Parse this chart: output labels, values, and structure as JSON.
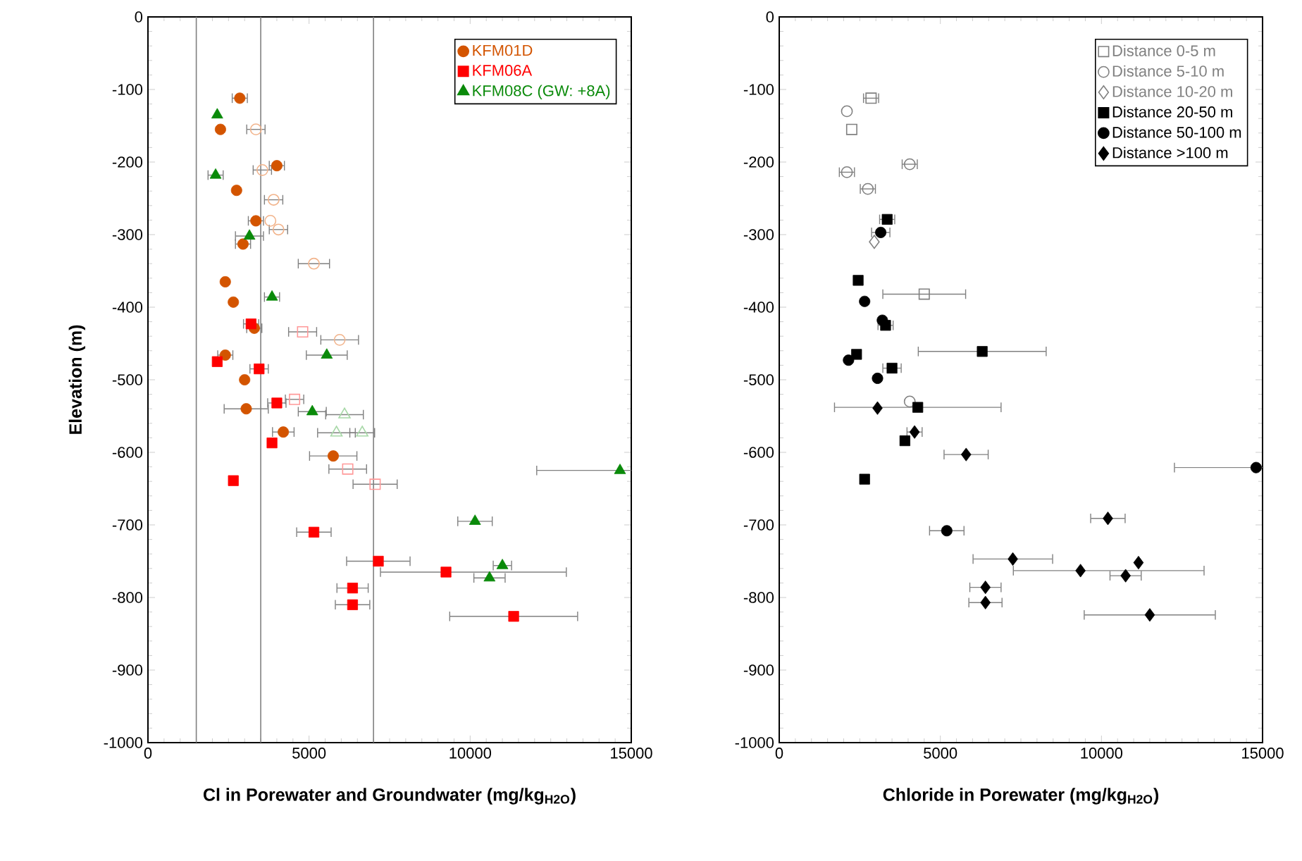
{
  "chart_data": [
    {
      "type": "scatter",
      "xlabel": "Cl in Porewater and Groundwater  (mg/kg$_{H2O}$)",
      "ylabel": "Elevation (m)",
      "xlim": [
        0,
        15000
      ],
      "ylim": [
        -1000,
        0
      ],
      "xticks": [
        0,
        5000,
        10000,
        15000
      ],
      "yticks": [
        -1000,
        -900,
        -800,
        -700,
        -600,
        -500,
        -400,
        -300,
        -200,
        -100,
        0
      ],
      "legend": "top right",
      "grid": false,
      "ref_lines": [
        {
          "axis": "x",
          "value": 1500,
          "color": "#808080"
        },
        {
          "axis": "x",
          "value": 3500,
          "color": "#808080"
        },
        {
          "axis": "x",
          "value": 7000,
          "color": "#808080"
        }
      ],
      "series": [
        {
          "name": "KFM01D",
          "color": "#d35400",
          "marker": "circle",
          "x": [
            2850,
            2250,
            4000,
            2750,
            3350,
            2950,
            2400,
            2650,
            3300,
            2400,
            3000,
            3050,
            4200,
            5750
          ],
          "values": [
            -112,
            -155,
            -205,
            -239,
            -281,
            -313,
            -365,
            -393,
            -429,
            -466,
            -500,
            -540,
            -572,
            -605
          ],
          "xerrors": [
            250,
            null,
            250,
            null,
            250,
            250,
            null,
            null,
            250,
            250,
            null,
            700,
            350,
            750
          ]
        },
        {
          "color": "#f2b48c",
          "marker": "circle-open",
          "x": [
            3350,
            3550,
            3900,
            3800,
            4050,
            5150,
            5950
          ],
          "values": [
            -155,
            -211,
            -252,
            -281,
            -293,
            -340,
            -445
          ],
          "xerrors": [
            300,
            300,
            300,
            null,
            300,
            500,
            600
          ]
        },
        {
          "name": "KFM06A",
          "color": "#ff0000",
          "marker": "square",
          "x": [
            3200,
            2150,
            3450,
            4000,
            3850,
            2650,
            5150,
            7150,
            9250,
            6350,
            6350,
            11350
          ],
          "values": [
            -423,
            -475,
            -485,
            -532,
            -587,
            -639,
            -710,
            -750,
            -765,
            -787,
            -810,
            -826
          ],
          "xerrors": [
            250,
            null,
            300,
            300,
            null,
            null,
            550,
            1000,
            [
              7200,
              13000
            ],
            500,
            550,
            2000
          ]
        },
        {
          "color": "#ff9999",
          "marker": "square-open",
          "x": [
            4800,
            4550,
            6200,
            7050
          ],
          "values": [
            -434,
            -527,
            -623,
            -644
          ],
          "xerrors": [
            450,
            300,
            600,
            700
          ]
        },
        {
          "name": "KFM08C (GW: +8A)",
          "color": "#0a8a0a",
          "marker": "triangle",
          "x": [
            2150,
            2100,
            3150,
            3850,
            5550,
            5100,
            14650,
            10150,
            11000,
            10600
          ],
          "values": [
            -135,
            -218,
            -302,
            -386,
            -466,
            -544,
            -625,
            -695,
            -756,
            -773
          ],
          "xerrors": [
            null,
            250,
            450,
            250,
            650,
            450,
            2600,
            550,
            300,
            500
          ]
        },
        {
          "color": "#a8d8a8",
          "marker": "triangle-open",
          "x": [
            6100,
            5850,
            6650
          ],
          "values": [
            -548,
            -573,
            -573
          ],
          "xerrors": [
            600,
            600,
            400
          ]
        }
      ]
    },
    {
      "type": "scatter",
      "xlabel": "Chloride in Porewater  (mg/kg$_{H2O}$)",
      "xlim": [
        0,
        15000
      ],
      "ylim": [
        -1000,
        0
      ],
      "xticks": [
        0,
        5000,
        10000,
        15000
      ],
      "yticks": [
        -1000,
        -900,
        -800,
        -700,
        -600,
        -500,
        -400,
        -300,
        -200,
        -100,
        0
      ],
      "legend": "top right",
      "grid": false,
      "series": [
        {
          "name": "Distance 0-5 m",
          "color": "#808080",
          "marker": "square-open",
          "x": [
            2850,
            2250,
            4500
          ],
          "values": [
            -112,
            -155,
            -382
          ],
          "xerrors": [
            250,
            null,
            1300
          ]
        },
        {
          "name": "Distance 5-10 m",
          "color": "#808080",
          "marker": "circle-open",
          "x": [
            2100,
            4050,
            2100,
            2750,
            4050
          ],
          "values": [
            -130,
            -203,
            -214,
            -237,
            -530
          ],
          "xerrors": [
            null,
            250,
            250,
            250,
            null
          ]
        },
        {
          "name": "Distance 10-20 m",
          "color": "#808080",
          "marker": "diamond-open",
          "x": [
            2950
          ],
          "values": [
            -310
          ],
          "xerrors": [
            null
          ]
        },
        {
          "name": "Distance 20-50 m",
          "color": "#000000",
          "marker": "square",
          "x": [
            3350,
            2450,
            3300,
            6300,
            2400,
            3500,
            4300,
            3900,
            2650
          ],
          "values": [
            -279,
            -363,
            -425,
            -461,
            -465,
            -484,
            -538,
            -584,
            -637
          ],
          "xerrors": [
            250,
            null,
            250,
            2000,
            null,
            300,
            2600,
            null,
            null
          ]
        },
        {
          "name": "Distance 50-100 m",
          "color": "#000000",
          "marker": "circle",
          "x": [
            3150,
            2650,
            3200,
            2150,
            3050,
            5200,
            14800
          ],
          "values": [
            -297,
            -392,
            -418,
            -473,
            -498,
            -708,
            -621
          ],
          "xerrors": [
            300,
            null,
            null,
            null,
            null,
            550,
            2550
          ]
        },
        {
          "name": "Distance >100 m",
          "color": "#000000",
          "marker": "diamond",
          "x": [
            3050,
            4200,
            5800,
            10200,
            7250,
            9350,
            11150,
            10750,
            6400,
            6400,
            11500
          ],
          "values": [
            -539,
            -572,
            -603,
            -691,
            -747,
            -763,
            -752,
            -770,
            -786,
            -807,
            -824
          ],
          "xerrors": [
            null,
            250,
            700,
            550,
            1250,
            [
              7250,
              13200
            ],
            null,
            500,
            500,
            530,
            2050
          ]
        }
      ]
    }
  ]
}
